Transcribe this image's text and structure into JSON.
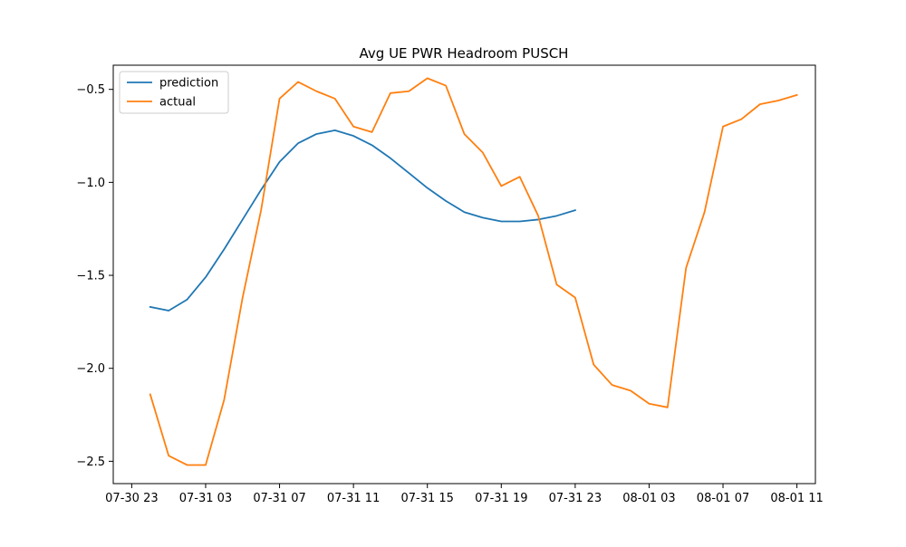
{
  "chart_data": {
    "type": "line",
    "title": "Avg UE PWR Headroom PUSCH",
    "xlabel": "",
    "ylabel": "",
    "x_ticks": [
      "07-30 23",
      "07-31 03",
      "07-31 07",
      "07-31 11",
      "07-31 15",
      "07-31 19",
      "07-31 23",
      "08-01 03",
      "08-01 07",
      "08-01 11"
    ],
    "y_ticks": [
      "−2.5",
      "−2.0",
      "−1.5",
      "−1.0",
      "−0.5"
    ],
    "ylim": [
      -2.62,
      -0.37
    ],
    "xlim": [
      "2023-07-30 22:00",
      "2023-08-01 12:00"
    ],
    "grid": false,
    "legend": "top-left",
    "series": [
      {
        "name": "prediction",
        "color": "#1f77b4",
        "x": [
          "2023-07-31 00:00",
          "2023-07-31 01:00",
          "2023-07-31 02:00",
          "2023-07-31 03:00",
          "2023-07-31 04:00",
          "2023-07-31 05:00",
          "2023-07-31 06:00",
          "2023-07-31 07:00",
          "2023-07-31 08:00",
          "2023-07-31 09:00",
          "2023-07-31 10:00",
          "2023-07-31 11:00",
          "2023-07-31 12:00",
          "2023-07-31 13:00",
          "2023-07-31 14:00",
          "2023-07-31 15:00",
          "2023-07-31 16:00",
          "2023-07-31 17:00",
          "2023-07-31 18:00",
          "2023-07-31 19:00",
          "2023-07-31 20:00",
          "2023-07-31 21:00",
          "2023-07-31 22:00",
          "2023-07-31 23:00"
        ],
        "y": [
          -1.67,
          -1.69,
          -1.63,
          -1.51,
          -1.36,
          -1.2,
          -1.04,
          -0.89,
          -0.79,
          -0.74,
          -0.72,
          -0.75,
          -0.8,
          -0.87,
          -0.95,
          -1.03,
          -1.1,
          -1.16,
          -1.19,
          -1.21,
          -1.21,
          -1.2,
          -1.18,
          -1.15
        ]
      },
      {
        "name": "actual",
        "color": "#ff7f0e",
        "x": [
          "2023-07-31 00:00",
          "2023-07-31 01:00",
          "2023-07-31 02:00",
          "2023-07-31 03:00",
          "2023-07-31 04:00",
          "2023-07-31 05:00",
          "2023-07-31 06:00",
          "2023-07-31 07:00",
          "2023-07-31 08:00",
          "2023-07-31 09:00",
          "2023-07-31 10:00",
          "2023-07-31 11:00",
          "2023-07-31 12:00",
          "2023-07-31 13:00",
          "2023-07-31 14:00",
          "2023-07-31 15:00",
          "2023-07-31 16:00",
          "2023-07-31 17:00",
          "2023-07-31 18:00",
          "2023-07-31 19:00",
          "2023-07-31 20:00",
          "2023-07-31 21:00",
          "2023-07-31 22:00",
          "2023-07-31 23:00",
          "2023-08-01 00:00",
          "2023-08-01 01:00",
          "2023-08-01 02:00",
          "2023-08-01 03:00",
          "2023-08-01 04:00",
          "2023-08-01 05:00",
          "2023-08-01 06:00",
          "2023-08-01 07:00",
          "2023-08-01 08:00",
          "2023-08-01 09:00",
          "2023-08-01 10:00",
          "2023-08-01 11:00"
        ],
        "y": [
          -2.14,
          -2.47,
          -2.52,
          -2.52,
          -2.17,
          -1.62,
          -1.15,
          -0.55,
          -0.46,
          -0.51,
          -0.55,
          -0.7,
          -0.73,
          -0.52,
          -0.51,
          -0.44,
          -0.48,
          -0.74,
          -0.84,
          -1.02,
          -0.97,
          -1.18,
          -1.55,
          -1.62,
          -1.98,
          -2.09,
          -2.12,
          -2.19,
          -2.21,
          -1.46,
          -1.16,
          -0.7,
          -0.66,
          -0.58,
          -0.56,
          -0.53
        ]
      }
    ]
  }
}
